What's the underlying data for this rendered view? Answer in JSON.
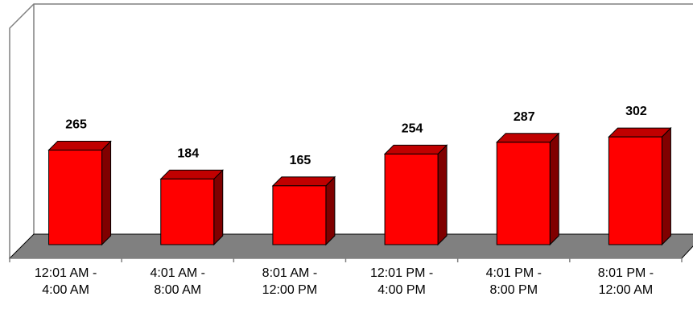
{
  "chart_data": {
    "type": "bar",
    "categories": [
      [
        "12:01 AM -",
        "4:00 AM"
      ],
      [
        "4:01 AM -",
        "8:00 AM"
      ],
      [
        "8:01 AM -",
        "12:00 PM"
      ],
      [
        "12:01 PM -",
        "4:00 PM"
      ],
      [
        "4:01 PM -",
        "8:00 PM"
      ],
      [
        "8:01 PM -",
        "12:00 AM"
      ]
    ],
    "values": [
      265,
      184,
      165,
      254,
      287,
      302
    ],
    "title": "",
    "xlabel": "",
    "ylabel": "",
    "ylim": [
      0,
      400
    ],
    "grid": false,
    "legend": "none",
    "style": "3d-column",
    "colors": {
      "bar_front": "#ff0000",
      "bar_top": "#c00000",
      "bar_side": "#800000",
      "floor": "#808080",
      "wall_line": "#808080"
    }
  }
}
